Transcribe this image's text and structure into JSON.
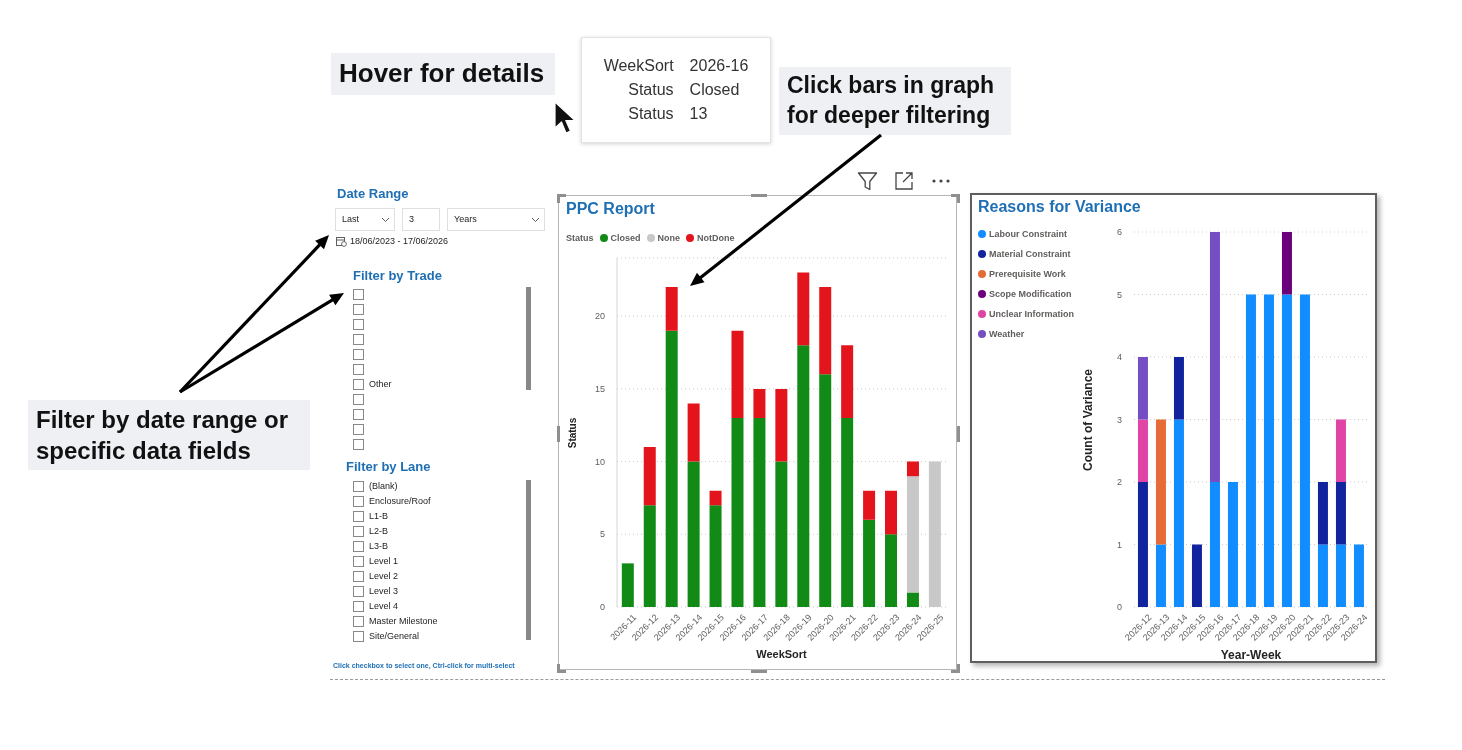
{
  "chart_data": [
    {
      "type": "other",
      "title": "Date Range",
      "annotations": [
        "Last",
        "3",
        "Years",
        "18/06/2023 - 17/06/2026",
        "Filter by date range or specific data fields"
      ]
    },
    {
      "type": "other",
      "title": "Filter by Trade",
      "categories": [
        null,
        null,
        null,
        null,
        null,
        null,
        "Other",
        null,
        null,
        null,
        null
      ]
    },
    {
      "type": "other",
      "title": "Filter by Lane",
      "categories": [
        "(Blank)",
        "Enclosure/Roof",
        "L1-B",
        "L2-B",
        "L3-B",
        "Level 1",
        "Level 2",
        "Level 3",
        "Level 4",
        "Master Milestone",
        "Site/General"
      ],
      "annotations": [
        "Click checkbox to select one, Ctrl-click for multi-select"
      ]
    },
    {
      "type": "bar",
      "title": "PPC Report",
      "stacked": true,
      "categories": [
        "2026-11",
        "2026-12",
        "2026-13",
        "2026-14",
        "2026-15",
        "2026-16",
        "2026-17",
        "2026-18",
        "2026-19",
        "2026-20",
        "2026-21",
        "2026-22",
        "2026-23",
        "2026-24",
        "2026-25"
      ],
      "series": [
        {
          "name": "Closed",
          "color": "#118a16",
          "values": [
            3,
            7,
            19,
            10,
            7,
            13,
            13,
            10,
            18,
            16,
            13,
            6,
            5,
            1,
            null
          ]
        },
        {
          "name": "None",
          "color": "#c8c8c8",
          "values": [
            null,
            null,
            null,
            null,
            null,
            null,
            null,
            null,
            null,
            null,
            null,
            null,
            null,
            8,
            10
          ]
        },
        {
          "name": "NotDone",
          "color": "#e3141c",
          "values": [
            null,
            4,
            3,
            4,
            1,
            6,
            2,
            5,
            5,
            6,
            5,
            2,
            3,
            1,
            null
          ]
        }
      ],
      "xlabel": "WeekSort",
      "ylabel": "Status",
      "legend_title": "Status",
      "legend": "top left",
      "ylim": [
        0,
        24
      ],
      "yticks": [
        0,
        5,
        10,
        15,
        20
      ],
      "grid": "y",
      "annotations": [
        "Click bars in graph for deeper filtering",
        "Hover for details",
        "WeekSort\t2026-16",
        "Status\tClosed",
        "Status\t13"
      ]
    },
    {
      "type": "bar",
      "title": "Reasons for Variance",
      "stacked": true,
      "categories": [
        "2026-12",
        "2026-13",
        "2026-14",
        "2026-15",
        "2026-16",
        "2026-17",
        "2026-18",
        "2026-19",
        "2026-20",
        "2026-21",
        "2026-22",
        "2026-23",
        "2026-24"
      ],
      "series": [
        {
          "name": "Labour Constraint",
          "color": "#118dff",
          "values": [
            null,
            1,
            3,
            null,
            2,
            2,
            5,
            5,
            5,
            5,
            1,
            1,
            1
          ]
        },
        {
          "name": "Material Constraint",
          "color": "#12239e",
          "values": [
            2,
            null,
            1,
            1,
            null,
            null,
            null,
            null,
            null,
            null,
            1,
            1,
            null
          ]
        },
        {
          "name": "Prerequisite Work",
          "color": "#e66c37",
          "values": [
            null,
            2,
            null,
            null,
            null,
            null,
            null,
            null,
            null,
            null,
            null,
            null,
            null
          ]
        },
        {
          "name": "Scope Modification",
          "color": "#6b007b",
          "values": [
            null,
            null,
            null,
            null,
            null,
            null,
            null,
            null,
            1,
            null,
            null,
            null,
            null
          ]
        },
        {
          "name": "Unclear Information",
          "color": "#e044a7",
          "values": [
            1,
            null,
            null,
            null,
            null,
            null,
            null,
            null,
            null,
            null,
            null,
            1,
            null
          ]
        },
        {
          "name": "Weather",
          "color": "#744ec2",
          "values": [
            1,
            null,
            null,
            null,
            4,
            null,
            null,
            null,
            null,
            null,
            null,
            null,
            null
          ]
        }
      ],
      "xlabel": "Year-Week",
      "ylabel": "Count of Variance",
      "legend": "left",
      "ylim": [
        0,
        6
      ],
      "yticks": [
        0,
        1,
        2,
        3,
        4,
        5,
        6
      ],
      "grid": "y"
    }
  ]
}
